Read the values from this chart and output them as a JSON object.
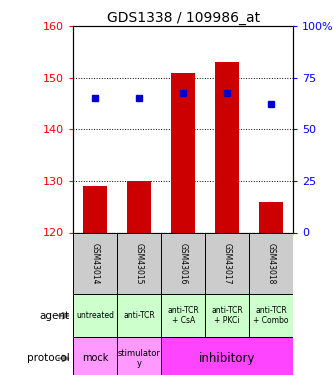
{
  "title": "GDS1338 / 109986_at",
  "samples": [
    "GSM43014",
    "GSM43015",
    "GSM43016",
    "GSM43017",
    "GSM43018"
  ],
  "bar_bottom": 120,
  "bar_tops": [
    129,
    130,
    151,
    153,
    126
  ],
  "percentile_values": [
    146,
    146,
    147,
    147,
    145
  ],
  "ylim_left": [
    120,
    160
  ],
  "ylim_right": [
    0,
    100
  ],
  "yticks_left": [
    120,
    130,
    140,
    150,
    160
  ],
  "yticks_right": [
    0,
    25,
    50,
    75,
    100
  ],
  "bar_color": "#cc0000",
  "percentile_color": "#0000cc",
  "agent_labels": [
    "untreated",
    "anti-TCR",
    "anti-TCR\n+ CsA",
    "anti-TCR\n+ PKCi",
    "anti-TCR\n+ Combo"
  ],
  "agent_bg": "#ccffcc",
  "sample_bg": "#cccccc",
  "mock_color": "#ff99ff",
  "stimulatory_color": "#ff99ff",
  "inhibitory_color": "#ff44ff",
  "legend_count_color": "#cc0000",
  "legend_pct_color": "#0000cc"
}
